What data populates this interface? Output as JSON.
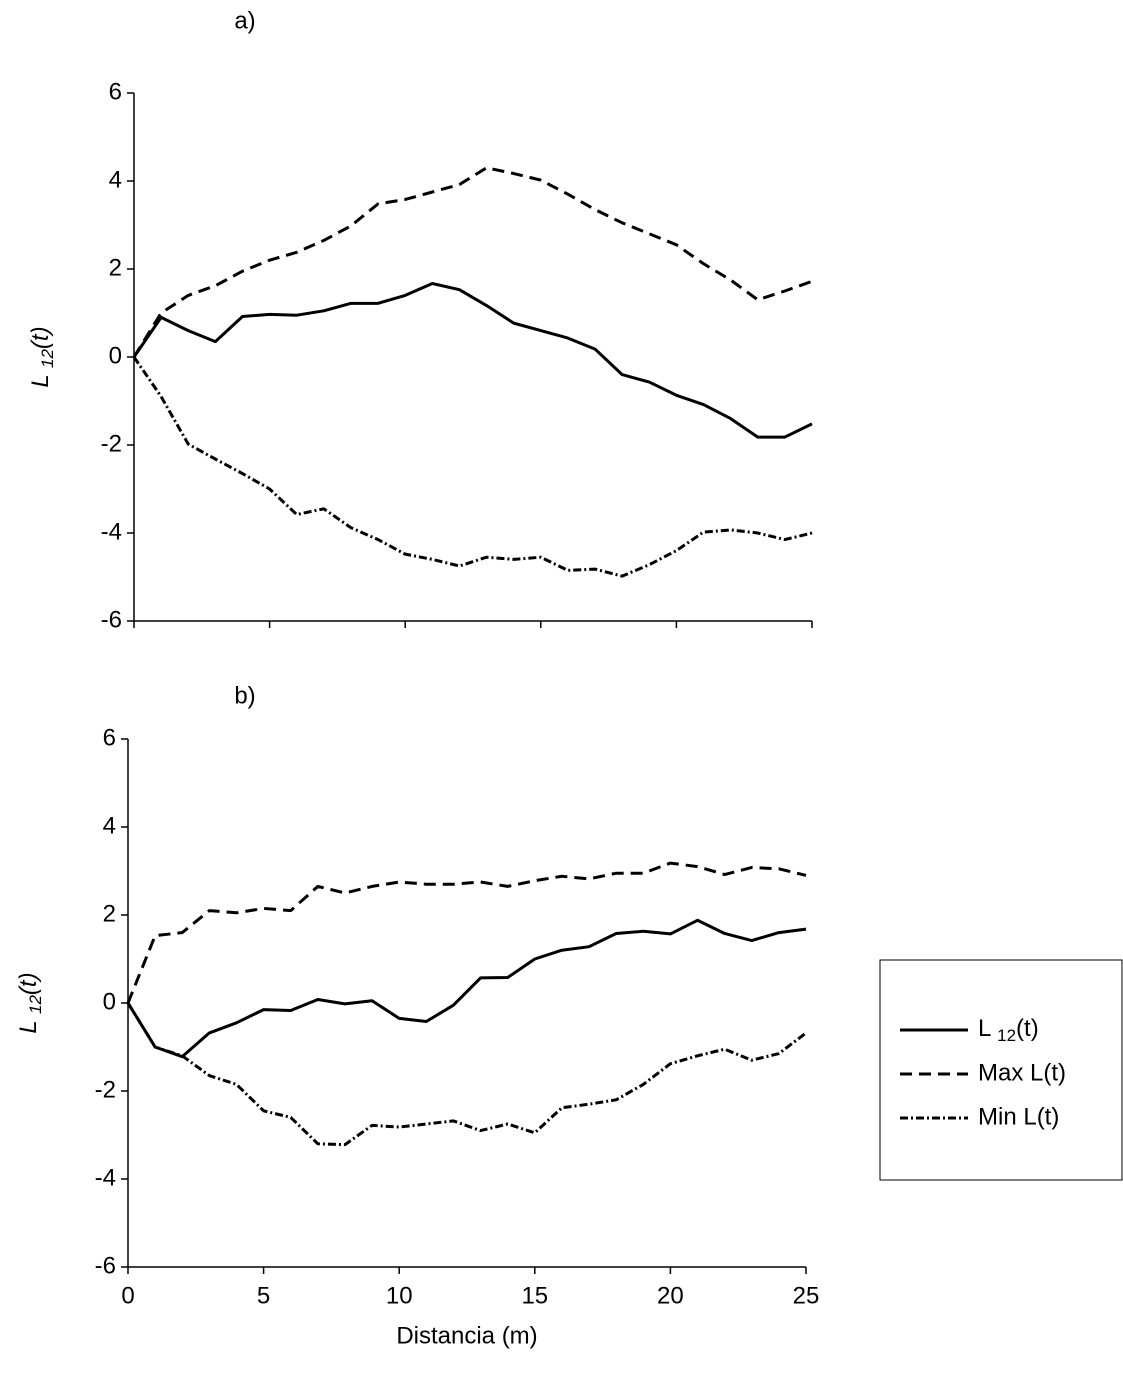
{
  "chart_data": [
    {
      "type": "line",
      "title": "a)",
      "ylabel": "L 12(t)",
      "x": [
        0,
        1,
        2,
        3,
        4,
        5,
        6,
        7,
        8,
        9,
        10,
        11,
        12,
        13,
        14,
        15,
        16,
        17,
        18,
        19,
        20,
        21,
        22,
        23,
        24,
        25
      ],
      "series": [
        {
          "color": "#000000",
          "style": "solid",
          "values": [
            0,
            0.9,
            0.6,
            0.35,
            0.92,
            0.97,
            0.95,
            1.05,
            1.22,
            1.22,
            1.4,
            1.67,
            1.53,
            1.17,
            0.77,
            0.6,
            0.43,
            0.18,
            -0.4,
            -0.57,
            -0.87,
            -1.08,
            -1.4,
            -1.82,
            -1.82,
            -1.52
          ]
        },
        {
          "color": "#000000",
          "style": "dashed",
          "values": [
            0,
            1.0,
            1.4,
            1.62,
            1.95,
            2.2,
            2.38,
            2.65,
            2.98,
            3.48,
            3.58,
            3.75,
            3.92,
            4.3,
            4.17,
            4.02,
            3.7,
            3.35,
            3.05,
            2.8,
            2.55,
            2.12,
            1.75,
            1.3,
            1.5,
            1.72
          ]
        },
        {
          "color": "#000000",
          "style": "dash-dot",
          "values": [
            0,
            -0.9,
            -1.98,
            -2.32,
            -2.65,
            -3.0,
            -3.58,
            -3.45,
            -3.88,
            -4.15,
            -4.48,
            -4.6,
            -4.75,
            -4.55,
            -4.6,
            -4.55,
            -4.85,
            -4.82,
            -4.98,
            -4.72,
            -4.4,
            -3.98,
            -3.93,
            -4.0,
            -4.15,
            -4.0
          ]
        }
      ],
      "xlim": [
        0,
        25
      ],
      "xticks": [
        0,
        5,
        10,
        15,
        20,
        25
      ],
      "xtick_labels": false,
      "ylim": [
        -6,
        6
      ],
      "yticks": [
        -6,
        -4,
        -2,
        0,
        2,
        4,
        6
      ]
    },
    {
      "type": "line",
      "title": "b)",
      "ylabel": "L 12(t)",
      "xlabel": "Distancia (m)",
      "x": [
        0,
        1,
        2,
        3,
        4,
        5,
        6,
        7,
        8,
        9,
        10,
        11,
        12,
        13,
        14,
        15,
        16,
        17,
        18,
        19,
        20,
        21,
        22,
        23,
        24,
        25
      ],
      "series": [
        {
          "name": "L 12(t)",
          "color": "#000000",
          "style": "solid",
          "values": [
            0,
            -1.0,
            -1.22,
            -0.68,
            -0.45,
            -0.15,
            -0.17,
            0.08,
            -0.02,
            0.05,
            -0.35,
            -0.42,
            -0.05,
            0.57,
            0.58,
            1.0,
            1.2,
            1.28,
            1.58,
            1.63,
            1.57,
            1.88,
            1.58,
            1.42,
            1.6,
            1.68
          ]
        },
        {
          "name": "Max L(t)",
          "color": "#000000",
          "style": "dashed",
          "values": [
            0,
            1.53,
            1.6,
            2.1,
            2.05,
            2.15,
            2.1,
            2.65,
            2.5,
            2.65,
            2.75,
            2.7,
            2.7,
            2.75,
            2.65,
            2.78,
            2.88,
            2.82,
            2.95,
            2.95,
            3.18,
            3.1,
            2.92,
            3.08,
            3.05,
            2.9
          ]
        },
        {
          "name": "Min L(t)",
          "color": "#000000",
          "style": "dash-dot",
          "values": [
            0,
            -1.0,
            -1.2,
            -1.65,
            -1.85,
            -2.45,
            -2.6,
            -3.2,
            -3.22,
            -2.78,
            -2.82,
            -2.75,
            -2.68,
            -2.9,
            -2.75,
            -2.95,
            -2.38,
            -2.3,
            -2.2,
            -1.85,
            -1.38,
            -1.2,
            -1.05,
            -1.3,
            -1.15,
            -0.68
          ]
        }
      ],
      "xlim": [
        0,
        25
      ],
      "xticks": [
        0,
        5,
        10,
        15,
        20,
        25
      ],
      "xtick_labels": true,
      "ylim": [
        -6,
        6
      ],
      "yticks": [
        -6,
        -4,
        -2,
        0,
        2,
        4,
        6
      ],
      "legend": "right"
    }
  ]
}
